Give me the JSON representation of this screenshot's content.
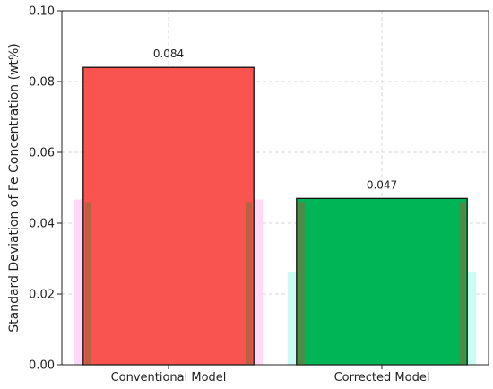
{
  "chart_data": {
    "type": "bar",
    "categories": [
      "Conventional Model",
      "Corrected Model"
    ],
    "values": [
      0.084,
      0.047
    ],
    "data_labels": [
      "0.084",
      "0.047"
    ],
    "colors": [
      "#f95450",
      "#00b556"
    ],
    "glow_colors": [
      "#ffd8f8",
      "#cbfbf2"
    ],
    "ylabel": "Standard Deviation of Fe Concentration (wt%)",
    "xlabel": "",
    "ylim": [
      0,
      0.1
    ],
    "yticks": [
      0.0,
      0.02,
      0.04,
      0.06,
      0.08,
      0.1
    ],
    "ytick_labels": [
      "0.00",
      "0.02",
      "0.04",
      "0.06",
      "0.08",
      "0.10"
    ],
    "grid": true
  }
}
